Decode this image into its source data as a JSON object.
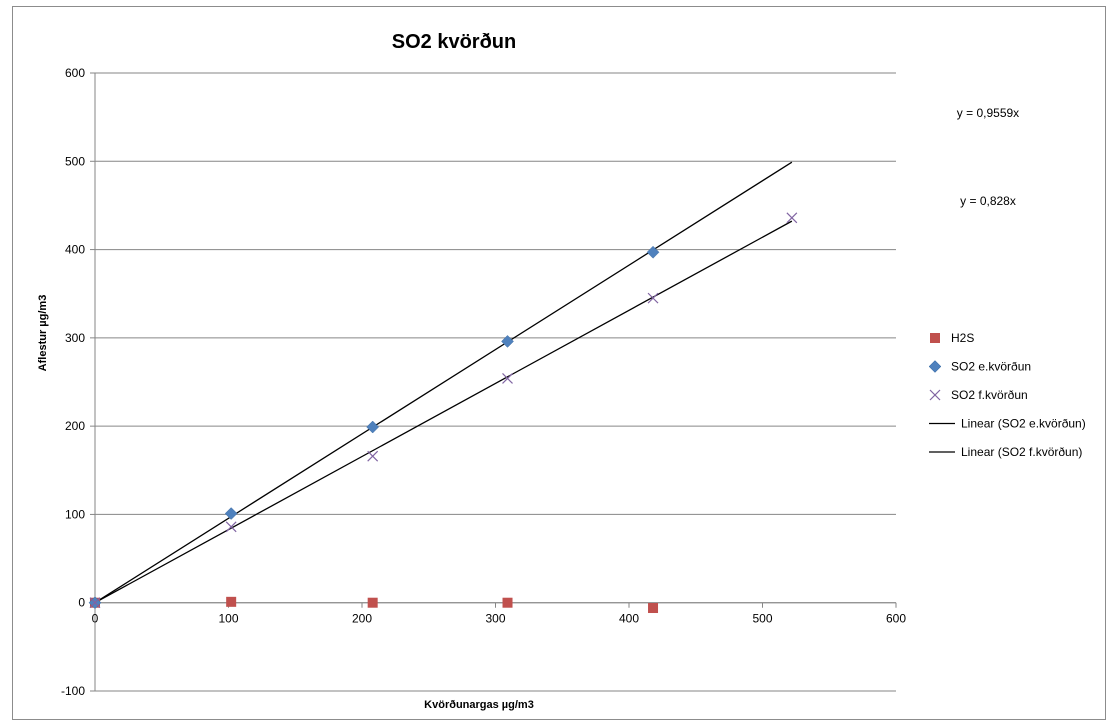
{
  "chart_data": {
    "type": "scatter",
    "title": "SO2 kvörðun",
    "xlabel": "Kvörðunargas µg/m3",
    "ylabel": "Aflestur µg/m3",
    "xlim": [
      0,
      600
    ],
    "ylim": [
      -100,
      600
    ],
    "x_ticks": [
      "0",
      "100",
      "200",
      "300",
      "400",
      "500",
      "600"
    ],
    "y_ticks": [
      "-100",
      "0",
      "100",
      "200",
      "300",
      "400",
      "500",
      "600"
    ],
    "grid": "horizontal",
    "legend_position": "right",
    "series": [
      {
        "name": "H2S",
        "marker": "square",
        "color": "#c0504d",
        "x": [
          0,
          102,
          208,
          309,
          418
        ],
        "y": [
          0,
          1,
          0,
          0,
          -6
        ]
      },
      {
        "name": "SO2 e.kvörðun",
        "marker": "diamond",
        "color": "#4f81bd",
        "x": [
          0,
          102,
          208,
          309,
          418
        ],
        "y": [
          0,
          101,
          199,
          296,
          397
        ]
      },
      {
        "name": "SO2 f.kvörðun",
        "marker": "x",
        "color": "#8064a2",
        "x": [
          0,
          102,
          208,
          309,
          418,
          522
        ],
        "y": [
          0,
          86,
          166,
          254,
          345,
          436
        ]
      }
    ],
    "trendlines": [
      {
        "name": "Linear (SO2 e.kvörðun)",
        "slope": 0.9559,
        "x_range": [
          0,
          522
        ],
        "color": "#000000",
        "equation": "y = 0,9559x"
      },
      {
        "name": "Linear (SO2 f.kvörðun)",
        "slope": 0.828,
        "x_range": [
          0,
          522
        ],
        "color": "#000000",
        "equation": "y = 0,828x"
      }
    ]
  }
}
